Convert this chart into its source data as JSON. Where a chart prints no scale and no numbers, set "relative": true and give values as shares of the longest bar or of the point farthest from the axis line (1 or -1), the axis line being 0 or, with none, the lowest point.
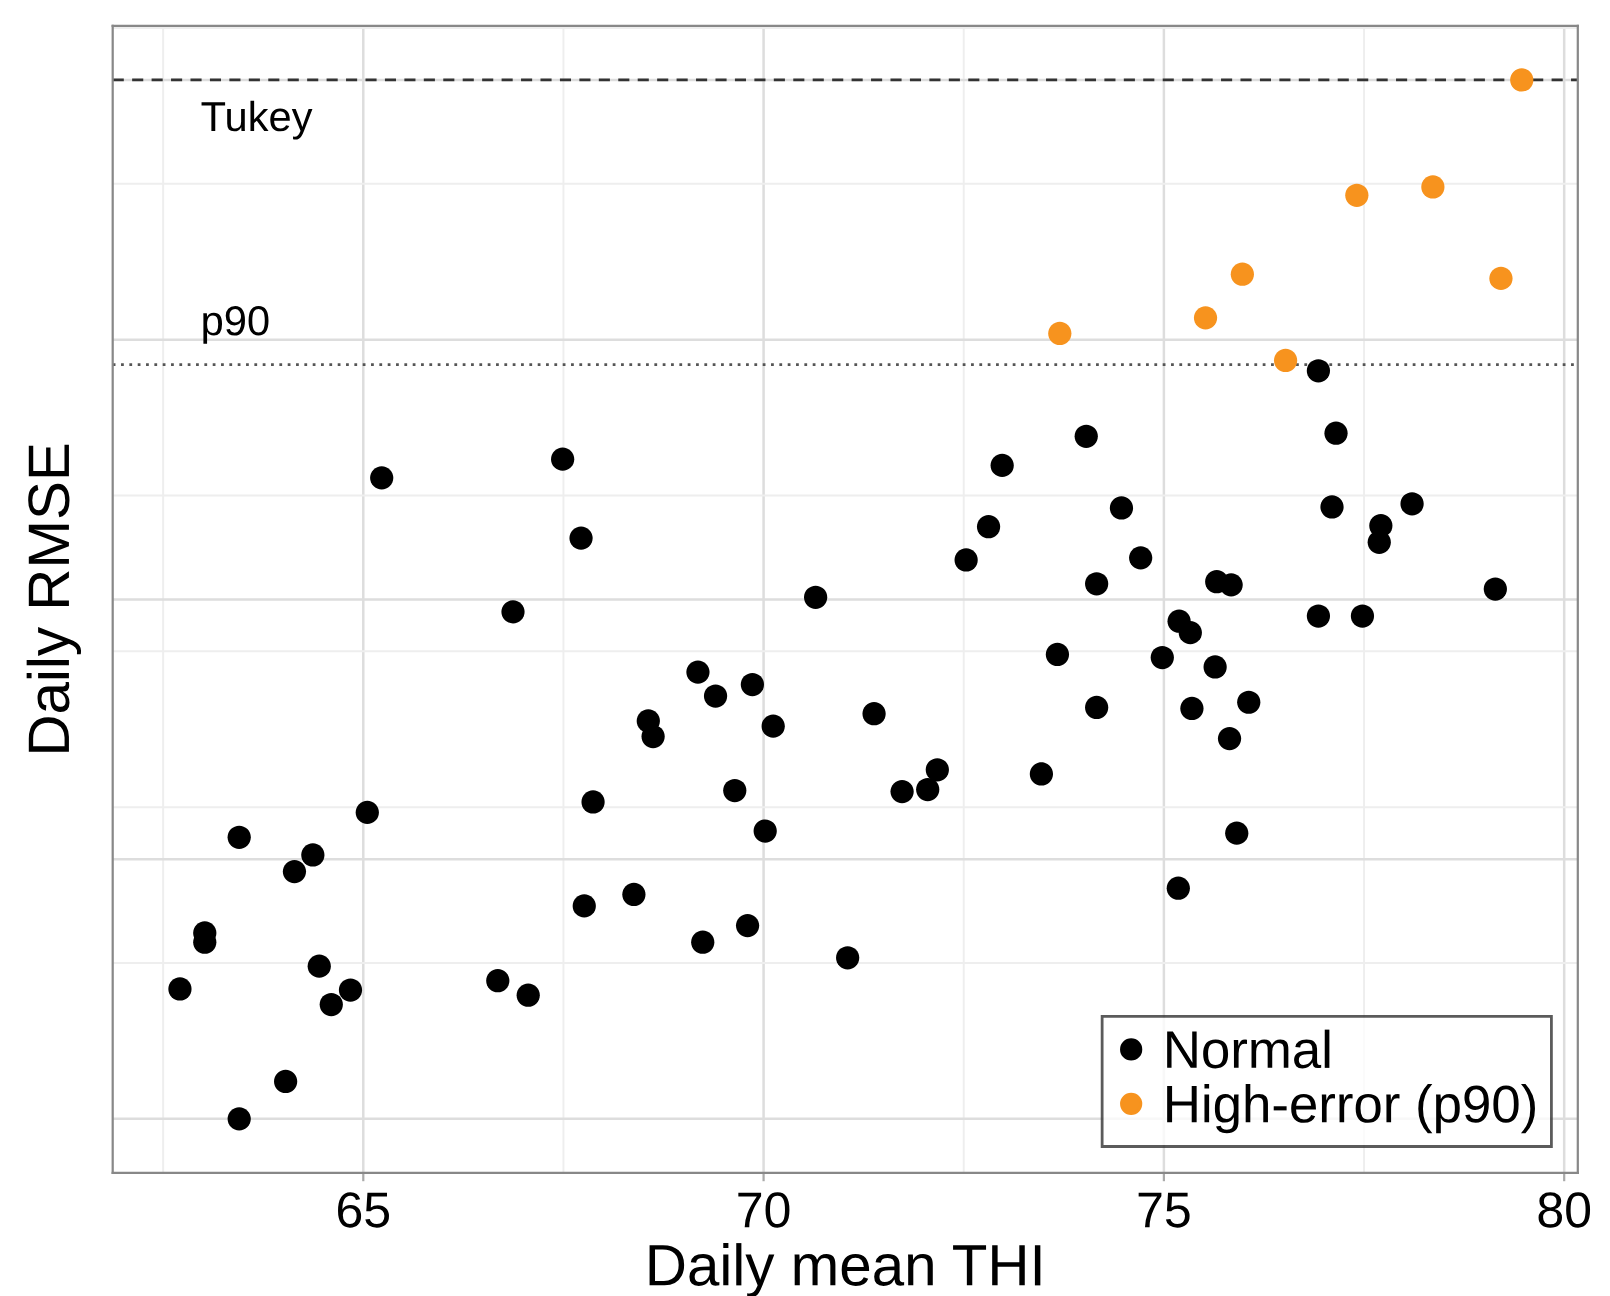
{
  "chart_data": {
    "type": "scatter",
    "relative": true,
    "xlabel": "Daily mean THI",
    "ylabel": "Daily RMSE",
    "xlim": [
      61.87,
      80.17
    ],
    "xticks": [
      65,
      70,
      75,
      80
    ],
    "grid": true,
    "legend": "bottom right",
    "marker": "circle",
    "series": [
      {
        "name": "Normal",
        "color": "#000000",
        "x": [
          62.71,
          63.45,
          63.45,
          63.02,
          63.02,
          64.14,
          64.37,
          64.45,
          64.6,
          64.84,
          64.03,
          65.05,
          65.23,
          66.68,
          67.06,
          66.87,
          67.49,
          67.72,
          67.87,
          67.76,
          68.38,
          68.56,
          68.62,
          69.18,
          69.4,
          69.86,
          70.12,
          69.64,
          70.02,
          69.24,
          69.8,
          71.05,
          70.65,
          71.38,
          71.73,
          72.05,
          72.17,
          73.47,
          73.67,
          74.16,
          74.16,
          74.98,
          75.19,
          75.33,
          75.64,
          75.35,
          76.06,
          75.82,
          75.91,
          75.18,
          76.93,
          77.48,
          79.14,
          75.66,
          75.84,
          72.53,
          72.81,
          72.98,
          74.03,
          74.47,
          74.71,
          76.93,
          77.15,
          77.1,
          77.71,
          77.69,
          78.1
        ],
        "values": [
          0.125,
          0,
          0.271,
          0.179,
          0.17,
          0.238,
          0.254,
          0.147,
          0.11,
          0.124,
          0.036,
          0.295,
          0.617,
          0.133,
          0.119,
          0.488,
          0.635,
          0.559,
          0.305,
          0.205,
          0.216,
          0.383,
          0.368,
          0.43,
          0.407,
          0.418,
          0.378,
          0.316,
          0.277,
          0.17,
          0.186,
          0.155,
          0.502,
          0.39,
          0.315,
          0.317,
          0.336,
          0.332,
          0.447,
          0.396,
          0.515,
          0.444,
          0.479,
          0.468,
          0.435,
          0.395,
          0.401,
          0.366,
          0.275,
          0.222,
          0.484,
          0.484,
          0.51,
          0.517,
          0.514,
          0.538,
          0.57,
          0.629,
          0.657,
          0.588,
          0.54,
          0.72,
          0.66,
          0.589,
          0.571,
          0.555,
          0.592
        ]
      },
      {
        "name": "High-error (p90)",
        "color": "#f7931e",
        "x": [
          73.7,
          75.52,
          75.98,
          76.52,
          77.41,
          78.36,
          79.21,
          79.47
        ],
        "values": [
          0.756,
          0.771,
          0.813,
          0.73,
          0.889,
          0.897,
          0.809,
          1
        ]
      }
    ],
    "ref_lines": [
      {
        "axis": "y",
        "value": 1.0,
        "label": "Tukey",
        "line_style": "dashed",
        "color": "#333333"
      },
      {
        "axis": "y",
        "value": 0.726,
        "label": "p90",
        "line_style": "dotted",
        "color": "#555555"
      }
    ]
  }
}
